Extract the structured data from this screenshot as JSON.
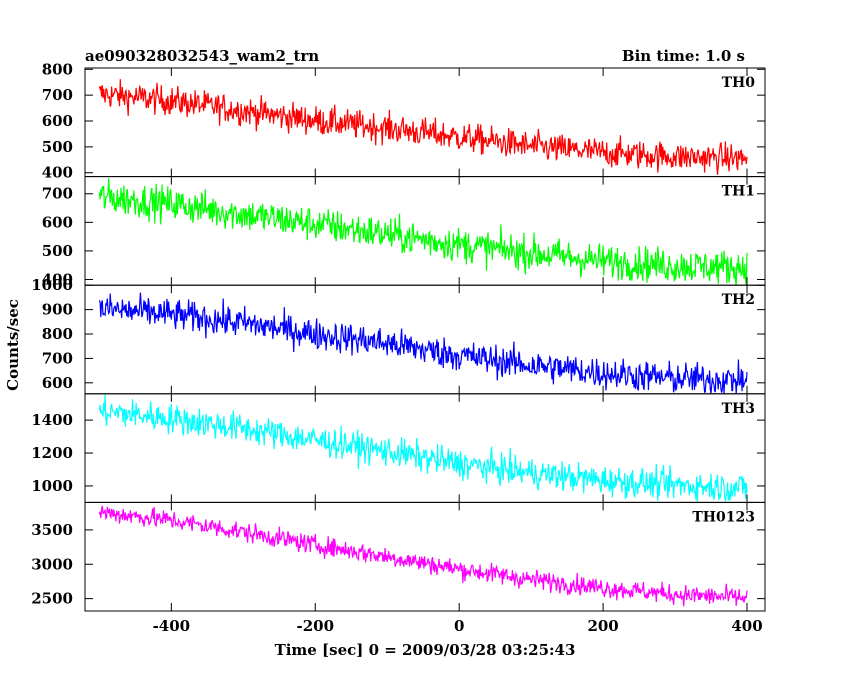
{
  "header": {
    "title": "ae090328032543_wam2_trn",
    "bin_time": "Bin time: 1.0 s"
  },
  "colors": {
    "TH0": "#ff0000",
    "TH1": "#00ff00",
    "TH2": "#0000ff",
    "TH3": "#00ffff",
    "TH0123": "#ff00ff"
  },
  "chart_data": {
    "type": "line",
    "title": "ae090328032543_wam2_trn",
    "subtitle": "Bin time: 1.0 s",
    "xlabel": "Time [sec] 0 = 2009/03/28 03:25:43",
    "ylabel": "Counts/sec",
    "xlim": [
      -520,
      425
    ],
    "xticks": [
      -400,
      -200,
      0,
      200,
      400
    ],
    "x_range": [
      -500,
      400
    ],
    "bin": 1.0,
    "grid": false,
    "panels": [
      {
        "name": "TH0",
        "ylim": [
          385,
          805
        ],
        "yticks": [
          400,
          500,
          600,
          700,
          800
        ],
        "trend_x": [
          -500,
          -400,
          -300,
          -200,
          -100,
          0,
          100,
          200,
          300,
          400
        ],
        "trend_y": [
          705,
          678,
          640,
          602,
          572,
          538,
          502,
          478,
          462,
          455
        ],
        "noise": 28,
        "series": [
          {
            "values_x_start": -500,
            "values_x_end": 400
          }
        ]
      },
      {
        "name": "TH1",
        "ylim": [
          380,
          760
        ],
        "yticks": [
          400,
          500,
          600,
          700
        ],
        "trend_x": [
          -500,
          -400,
          -300,
          -200,
          -100,
          0,
          100,
          200,
          300,
          400
        ],
        "trend_y": [
          690,
          665,
          628,
          594,
          558,
          522,
          492,
          465,
          448,
          442
        ],
        "noise": 30,
        "series": [
          {
            "values_x_start": -500,
            "values_x_end": 400
          }
        ]
      },
      {
        "name": "TH2",
        "ylim": [
          555,
          1000
        ],
        "yticks": [
          600,
          700,
          800,
          900,
          1000
        ],
        "trend_x": [
          -500,
          -400,
          -300,
          -200,
          -100,
          0,
          100,
          200,
          300,
          400
        ],
        "trend_y": [
          905,
          880,
          845,
          800,
          762,
          712,
          672,
          640,
          618,
          610
        ],
        "noise": 32,
        "series": [
          {
            "values_x_start": -500,
            "values_x_end": 400
          }
        ]
      },
      {
        "name": "TH3",
        "ylim": [
          900,
          1560
        ],
        "yticks": [
          1000,
          1200,
          1400
        ],
        "trend_x": [
          -500,
          -400,
          -300,
          -200,
          -100,
          0,
          100,
          200,
          300,
          400
        ],
        "trend_y": [
          1455,
          1410,
          1350,
          1278,
          1210,
          1135,
          1078,
          1035,
          1005,
          988
        ],
        "noise": 45,
        "series": [
          {
            "values_x_start": -500,
            "values_x_end": 400
          }
        ]
      },
      {
        "name": "TH0123",
        "ylim": [
          2320,
          3900
        ],
        "yticks": [
          2500,
          3000,
          3500
        ],
        "trend_x": [
          -500,
          -400,
          -300,
          -200,
          -100,
          0,
          100,
          200,
          300,
          400
        ],
        "trend_y": [
          3760,
          3640,
          3470,
          3280,
          3110,
          2930,
          2780,
          2660,
          2560,
          2510
        ],
        "noise": 70,
        "series": [
          {
            "values_x_start": -500,
            "values_x_end": 400
          }
        ]
      }
    ]
  }
}
